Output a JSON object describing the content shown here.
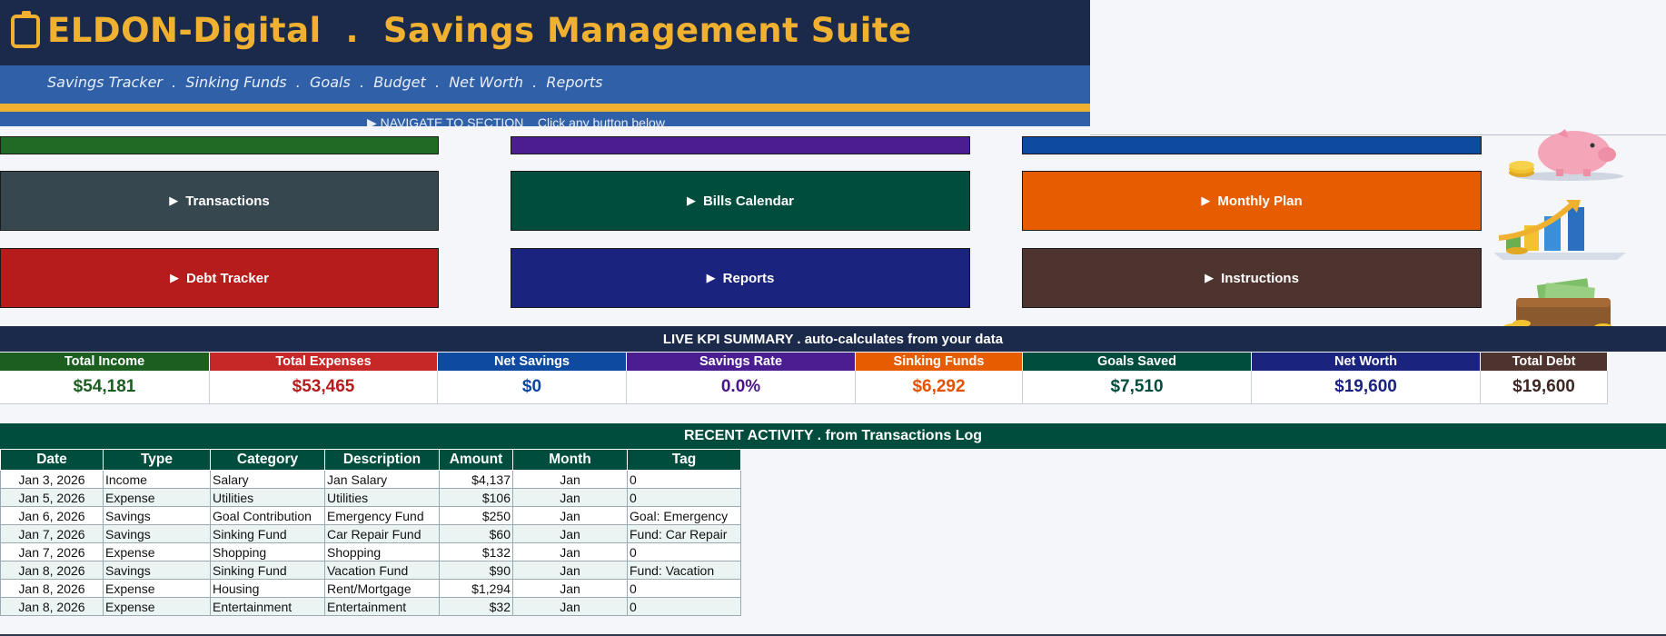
{
  "header": {
    "title": "ELDON-Digital  .  Savings Management Suite",
    "subtitle": "Savings Tracker  .  Sinking Funds  .  Goals  .  Budget  .  Net Worth  .  Reports",
    "nav_hint": "▶ NAVIGATE TO SECTION    Click any button below",
    "logo_icon": "clipboard-icon"
  },
  "buttons": {
    "row1": [
      {
        "label": "",
        "color": "#1f6b26"
      },
      {
        "label": "",
        "color": "#4a1e91"
      },
      {
        "label": "",
        "color": "#0d4aa0"
      }
    ],
    "row2": [
      {
        "label": "Transactions",
        "color": "#37474f"
      },
      {
        "label": "Bills Calendar",
        "color": "#004d3d"
      },
      {
        "label": "Monthly Plan",
        "color": "#e65c00"
      }
    ],
    "row3": [
      {
        "label": "Debt Tracker",
        "color": "#b71c1c"
      },
      {
        "label": "Reports",
        "color": "#1a237e"
      },
      {
        "label": "Instructions",
        "color": "#4e342e"
      }
    ],
    "arrow": "▶"
  },
  "illustrations": [
    "piggy-bank-icon",
    "growth-chart-icon",
    "money-wallet-icon"
  ],
  "kpi": {
    "title": "LIVE KPI SUMMARY  .  auto-calculates from your data",
    "items": [
      {
        "label": "Total Income",
        "value": "$54,181",
        "color": "#1b5e20",
        "header_color": "#1b5e20"
      },
      {
        "label": "Total Expenses",
        "value": "$53,465",
        "color": "#b71c1c",
        "header_color": "#c62828"
      },
      {
        "label": "Net Savings",
        "value": "$0",
        "color": "#0d47a1",
        "header_color": "#0d4aa0"
      },
      {
        "label": "Savings Rate",
        "value": "0.0%",
        "color": "#4a148c",
        "header_color": "#4a1e91"
      },
      {
        "label": "Sinking Funds",
        "value": "$6,292",
        "color": "#e65100",
        "header_color": "#e65c00"
      },
      {
        "label": "Goals Saved",
        "value": "$7,510",
        "color": "#004d3d",
        "header_color": "#004d3d"
      },
      {
        "label": "Net Worth",
        "value": "$19,600",
        "color": "#1a237e",
        "header_color": "#1a237e"
      },
      {
        "label": "Total Debt",
        "value": "$19,600",
        "color": "#3e2723",
        "header_color": "#4e342e"
      }
    ]
  },
  "activity": {
    "title": "RECENT ACTIVITY  .  from Transactions Log",
    "columns": [
      "Date",
      "Type",
      "Category",
      "Description",
      "Amount",
      "Month",
      "Tag"
    ],
    "rows": [
      [
        "Jan 3, 2026",
        "Income",
        "Salary",
        "Jan Salary",
        "$4,137",
        "Jan",
        "0"
      ],
      [
        "Jan 5, 2026",
        "Expense",
        "Utilities",
        "Utilities",
        "$106",
        "Jan",
        "0"
      ],
      [
        "Jan 6, 2026",
        "Savings",
        "Goal Contribution",
        "Emergency Fund",
        "$250",
        "Jan",
        "Goal: Emergency"
      ],
      [
        "Jan 7, 2026",
        "Savings",
        "Sinking Fund",
        "Car Repair Fund",
        "$60",
        "Jan",
        "Fund: Car Repair"
      ],
      [
        "Jan 7, 2026",
        "Expense",
        "Shopping",
        "Shopping",
        "$132",
        "Jan",
        "0"
      ],
      [
        "Jan 8, 2026",
        "Savings",
        "Sinking Fund",
        "Vacation Fund",
        "$90",
        "Jan",
        "Fund: Vacation"
      ],
      [
        "Jan 8, 2026",
        "Expense",
        "Housing",
        "Rent/Mortgage",
        "$1,294",
        "Jan",
        "0"
      ],
      [
        "Jan 8, 2026",
        "Expense",
        "Entertainment",
        "Entertainment",
        "$32",
        "Jan",
        "0"
      ]
    ]
  }
}
